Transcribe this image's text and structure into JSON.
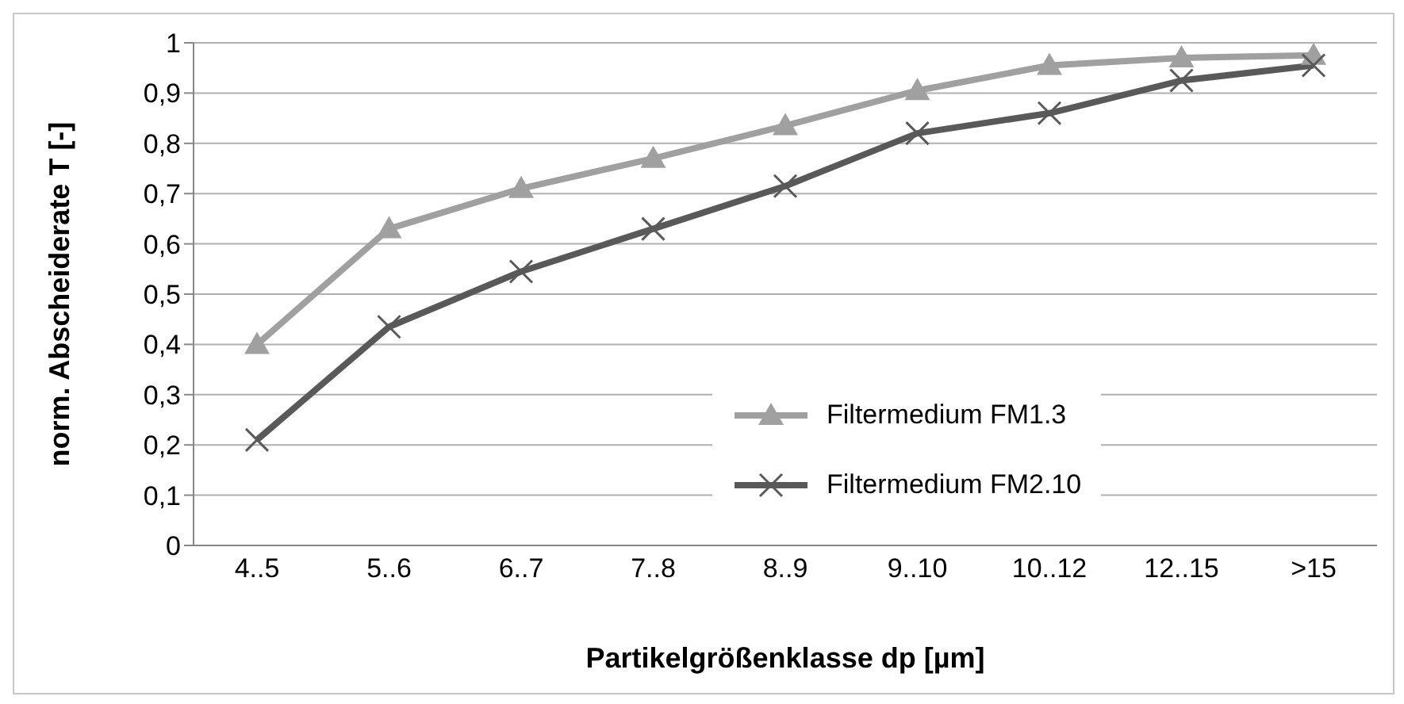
{
  "chart_data": {
    "type": "line",
    "xlabel": "Partikelgrößenklasse dp [µm]",
    "ylabel": "norm. Abscheiderate T [-]",
    "categories": [
      "4..5",
      "5..6",
      "6..7",
      "7..8",
      "8..9",
      "9..10",
      "10..12",
      "12..15",
      ">15"
    ],
    "series": [
      {
        "name": "Filtermedium FM1.3",
        "color": "#a0a0a0",
        "marker": "triangle",
        "values": [
          0.4,
          0.63,
          0.71,
          0.77,
          0.835,
          0.905,
          0.955,
          0.97,
          0.975
        ]
      },
      {
        "name": "Filtermedium FM2.10",
        "color": "#595959",
        "marker": "cross",
        "values": [
          0.21,
          0.435,
          0.545,
          0.63,
          0.715,
          0.82,
          0.86,
          0.925,
          0.955
        ]
      }
    ],
    "ylim": [
      0,
      1
    ],
    "yticks": [
      0,
      {
        "value": 0.1,
        "label": "0,1"
      },
      {
        "value": 0.2,
        "label": "0,2"
      },
      {
        "value": 0.3,
        "label": "0,3"
      },
      {
        "value": 0.4,
        "label": "0,4"
      },
      {
        "value": 0.5,
        "label": "0,5"
      },
      {
        "value": 0.6,
        "label": "0,6"
      },
      {
        "value": 0.7,
        "label": "0,7"
      },
      {
        "value": 0.8,
        "label": "0,8"
      },
      {
        "value": 0.9,
        "label": "0,9"
      },
      1
    ],
    "grid": "y",
    "legend": "bottom",
    "line_style": "solid"
  }
}
